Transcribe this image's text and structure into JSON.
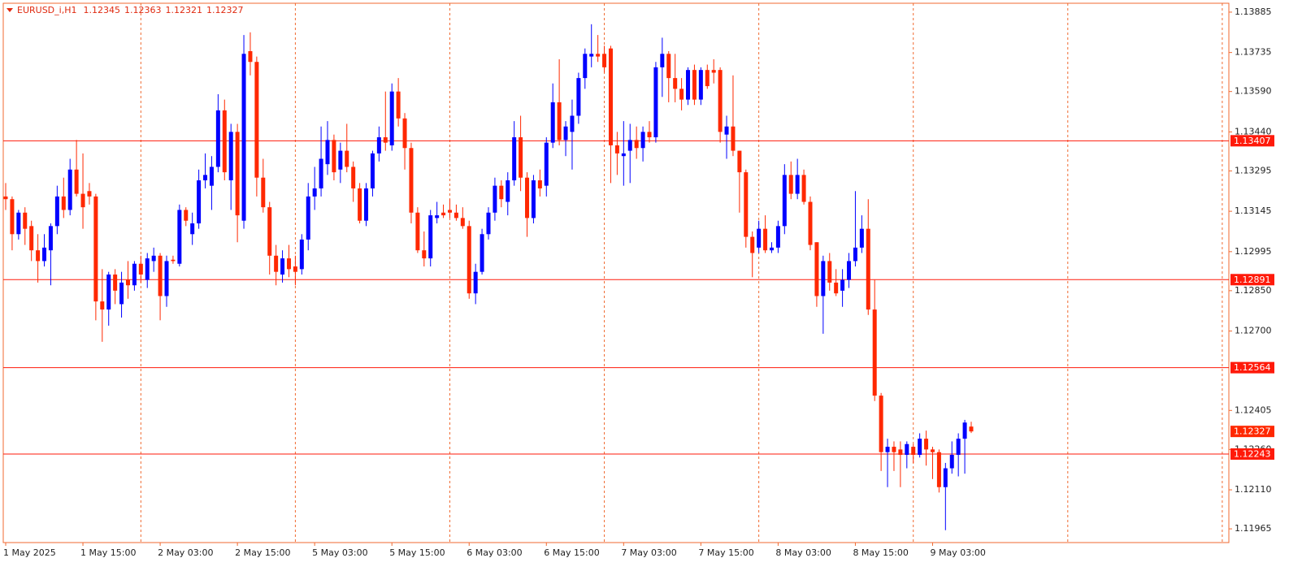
{
  "chart_data": {
    "type": "candlestick",
    "title": "EURUSD_i,H1",
    "categories": [
      "1 May 2025",
      null,
      null,
      null,
      null,
      null,
      null,
      null,
      null,
      null,
      null,
      null,
      "1 May 15:00",
      null,
      null,
      null,
      null,
      null,
      null,
      null,
      null,
      null,
      null,
      null,
      "2 May 03:00",
      null,
      null,
      null,
      null,
      null,
      null,
      null,
      null,
      null,
      null,
      null,
      "2 May 15:00",
      null,
      null,
      null,
      null,
      null,
      null,
      null,
      null,
      null,
      null,
      null,
      "5 May 03:00",
      null,
      null,
      null,
      null,
      null,
      null,
      null,
      null,
      null,
      null,
      null,
      "5 May 15:00",
      null,
      null,
      null,
      null,
      null,
      null,
      null,
      null,
      null,
      null,
      null,
      "6 May 03:00",
      null,
      null,
      null,
      null,
      null,
      null,
      null,
      null,
      null,
      null,
      null,
      "6 May 15:00",
      null,
      null,
      null,
      null,
      null,
      null,
      null,
      null,
      null,
      null,
      null,
      "7 May 03:00",
      null,
      null,
      null,
      null,
      null,
      null,
      null,
      null,
      null,
      null,
      null,
      "7 May 15:00",
      null,
      null,
      null,
      null,
      null,
      null,
      null,
      null,
      null,
      null,
      null,
      "8 May 03:00",
      null,
      null,
      null,
      null,
      null,
      null,
      null,
      null,
      null,
      null,
      null,
      "8 May 15:00",
      null,
      null,
      null,
      null,
      null,
      null,
      null,
      null,
      null,
      null,
      null,
      "9 May 03:00",
      null,
      null,
      null,
      null,
      null,
      null
    ],
    "open": [
      1.132,
      1.1319,
      1.1306,
      1.1314,
      1.1309,
      1.13,
      1.1296,
      1.13,
      1.1309,
      1.132,
      1.1315,
      1.133,
      1.1321,
      1.1322,
      1.132,
      1.1281,
      1.1278,
      1.1291,
      1.128,
      1.1289,
      1.1287,
      1.1295,
      1.1289,
      1.1296,
      1.1298,
      1.1283,
      1.12965,
      1.1295,
      1.1315,
      1.1306,
      1.131,
      1.1326,
      1.1324,
      1.1331,
      1.1352,
      1.1326,
      1.1344,
      1.1311,
      1.1374,
      1.137,
      1.1327,
      1.1316,
      1.1298,
      1.1291,
      1.1297,
      1.1294,
      1.1293,
      1.1304,
      1.132,
      1.1323,
      1.1332,
      1.1341,
      1.133,
      1.1337,
      1.1331,
      1.1323,
      1.1311,
      1.1323,
      1.1336,
      1.1342,
      1.1339,
      1.1359,
      1.1349,
      1.1338,
      1.1314,
      1.13,
      1.1297,
      1.1312,
      1.1314,
      1.1315,
      1.1314,
      1.1312,
      1.1309,
      1.1284,
      1.1292,
      1.1306,
      1.1314,
      1.1324,
      1.1318,
      1.1326,
      1.1342,
      1.1327,
      1.1312,
      1.1326,
      1.1324,
      1.134,
      1.1355,
      1.1341,
      1.1344,
      1.135,
      1.1364,
      1.1372,
      1.1373,
      1.1373,
      1.1375,
      1.1339,
      1.1335,
      1.1337,
      1.1341,
      1.1338,
      1.1344,
      1.1342,
      1.1368,
      1.1373,
      1.1364,
      1.136,
      1.1356,
      1.1367,
      1.1356,
      1.1367,
      1.1367,
      1.1367,
      1.1343,
      1.1346,
      1.1337,
      1.1329,
      1.1305,
      1.1301,
      1.1308,
      1.13,
      1.1301,
      1.1309,
      1.1328,
      1.1321,
      1.1328,
      1.1318,
      1.1303,
      1.1283,
      1.1296,
      1.1288,
      1.1285,
      1.1289,
      1.1296,
      1.1301,
      1.1308,
      1.1278,
      1.1246,
      1.1225,
      1.1227,
      1.1226,
      1.1224,
      1.1227,
      1.1224,
      1.123,
      1.1226,
      1.1225,
      1.1212,
      1.1219,
      1.1224,
      1.123,
      1.12345
    ],
    "high": [
      1.1325,
      1.132,
      1.1315,
      1.1316,
      1.1311,
      1.1306,
      1.1306,
      1.131,
      1.1324,
      1.1327,
      1.1334,
      1.1341,
      1.1336,
      1.1325,
      1.1321,
      1.1293,
      1.1292,
      1.1293,
      1.1292,
      1.1296,
      1.1296,
      1.1298,
      1.1299,
      1.1301,
      1.1299,
      1.1298,
      1.1298,
      1.1317,
      1.1316,
      1.1314,
      1.133,
      1.1336,
      1.1335,
      1.1358,
      1.1356,
      1.1347,
      1.1347,
      1.138,
      1.1381,
      1.1372,
      1.1334,
      1.1318,
      1.1302,
      1.13,
      1.1302,
      1.1298,
      1.1306,
      1.1325,
      1.1331,
      1.1346,
      1.1348,
      1.1343,
      1.134,
      1.1347,
      1.1333,
      1.1325,
      1.1325,
      1.1337,
      1.1346,
      1.1359,
      1.1362,
      1.1364,
      1.1351,
      1.134,
      1.1316,
      1.1307,
      1.1315,
      1.1318,
      1.1317,
      1.1319,
      1.1317,
      1.1316,
      1.1311,
      1.1295,
      1.1308,
      1.1316,
      1.1327,
      1.1326,
      1.1329,
      1.1348,
      1.135,
      1.1329,
      1.1328,
      1.133,
      1.1342,
      1.1362,
      1.1371,
      1.1348,
      1.1356,
      1.1366,
      1.1375,
      1.1384,
      1.138,
      1.1376,
      1.1376,
      1.1344,
      1.1348,
      1.1347,
      1.1346,
      1.1346,
      1.1348,
      1.137,
      1.1379,
      1.1374,
      1.1373,
      1.1364,
      1.1368,
      1.1369,
      1.1368,
      1.1369,
      1.1371,
      1.1368,
      1.135,
      1.1365,
      1.1337,
      1.133,
      1.1307,
      1.1311,
      1.1313,
      1.1303,
      1.1311,
      1.1332,
      1.1333,
      1.1334,
      1.133,
      1.132,
      1.1303,
      1.1298,
      1.1299,
      1.1293,
      1.1293,
      1.1299,
      1.1322,
      1.1313,
      1.1319,
      1.1289,
      1.1247,
      1.123,
      1.1229,
      1.1229,
      1.1229,
      1.1228,
      1.1232,
      1.1233,
      1.1227,
      1.1226,
      1.1221,
      1.1229,
      1.1232,
      1.1237,
      1.12363
    ],
    "low": [
      1.1315,
      1.13,
      1.1304,
      1.1302,
      1.1296,
      1.1288,
      1.1294,
      1.1287,
      1.1306,
      1.1312,
      1.1313,
      1.132,
      1.1308,
      1.1317,
      1.1274,
      1.1266,
      1.1272,
      1.128,
      1.1275,
      1.1282,
      1.1285,
      1.1288,
      1.1286,
      1.1292,
      1.1274,
      1.1279,
      1.1295,
      1.1294,
      1.1309,
      1.1302,
      1.1308,
      1.1323,
      1.1315,
      1.1329,
      1.1326,
      1.1315,
      1.1303,
      1.1308,
      1.1365,
      1.132,
      1.1314,
      1.1291,
      1.1287,
      1.1288,
      1.129,
      1.1287,
      1.1291,
      1.13,
      1.1315,
      1.132,
      1.1328,
      1.1326,
      1.1325,
      1.1329,
      1.1318,
      1.131,
      1.1309,
      1.132,
      1.1333,
      1.1337,
      1.1337,
      1.1346,
      1.133,
      1.131,
      1.1299,
      1.1294,
      1.1294,
      1.131,
      1.1312,
      1.1312,
      1.1311,
      1.1308,
      1.1282,
      1.128,
      1.1291,
      1.1304,
      1.1311,
      1.1316,
      1.1313,
      1.1324,
      1.1322,
      1.1305,
      1.131,
      1.132,
      1.132,
      1.1338,
      1.1339,
      1.1335,
      1.133,
      1.1347,
      1.136,
      1.1368,
      1.137,
      1.1366,
      1.1325,
      1.1328,
      1.1324,
      1.1325,
      1.1334,
      1.1333,
      1.134,
      1.134,
      1.1357,
      1.1355,
      1.1355,
      1.1352,
      1.1354,
      1.1354,
      1.1354,
      1.136,
      1.1362,
      1.134,
      1.1334,
      1.1335,
      1.1314,
      1.1301,
      1.129,
      1.1299,
      1.1299,
      1.1299,
      1.1299,
      1.1306,
      1.1319,
      1.1319,
      1.1317,
      1.13,
      1.1279,
      1.1269,
      1.1285,
      1.1283,
      1.1279,
      1.1286,
      1.1294,
      1.1299,
      1.1276,
      1.1244,
      1.1218,
      1.1212,
      1.1218,
      1.1212,
      1.1219,
      1.1221,
      1.1223,
      1.122,
      1.1215,
      1.121,
      1.1196,
      1.1217,
      1.1216,
      1.1217,
      1.12321
    ],
    "close": [
      1.1319,
      1.1306,
      1.1314,
      1.1308,
      1.13,
      1.1296,
      1.1301,
      1.1309,
      1.132,
      1.1315,
      1.133,
      1.1321,
      1.1316,
      1.132,
      1.1281,
      1.1278,
      1.1291,
      1.1285,
      1.1288,
      1.1287,
      1.1295,
      1.1291,
      1.1297,
      1.1298,
      1.1283,
      1.1296,
      1.1296,
      1.1315,
      1.1311,
      1.131,
      1.1326,
      1.1328,
      1.1331,
      1.1352,
      1.1329,
      1.1344,
      1.1313,
      1.1373,
      1.137,
      1.1327,
      1.1316,
      1.1298,
      1.1292,
      1.1297,
      1.1293,
      1.1292,
      1.1304,
      1.132,
      1.1323,
      1.1334,
      1.1341,
      1.1329,
      1.1337,
      1.1331,
      1.1323,
      1.1311,
      1.1323,
      1.1336,
      1.1342,
      1.134,
      1.1359,
      1.1349,
      1.1338,
      1.1314,
      1.13,
      1.1297,
      1.1313,
      1.1313,
      1.1313,
      1.1314,
      1.1312,
      1.1309,
      1.1284,
      1.1292,
      1.1306,
      1.1314,
      1.1324,
      1.1319,
      1.1326,
      1.1342,
      1.1327,
      1.1312,
      1.1326,
      1.1323,
      1.134,
      1.1355,
      1.1341,
      1.1346,
      1.135,
      1.1364,
      1.1373,
      1.1373,
      1.1372,
      1.1368,
      1.1339,
      1.1336,
      1.1336,
      1.1341,
      1.1338,
      1.1344,
      1.1342,
      1.1368,
      1.1373,
      1.1364,
      1.136,
      1.1356,
      1.1367,
      1.1356,
      1.1367,
      1.1361,
      1.1366,
      1.1344,
      1.1346,
      1.1337,
      1.1329,
      1.1305,
      1.1299,
      1.1308,
      1.13,
      1.1301,
      1.1309,
      1.1328,
      1.1321,
      1.1328,
      1.1318,
      1.1302,
      1.1283,
      1.1296,
      1.1288,
      1.1284,
      1.1289,
      1.1296,
      1.1301,
      1.1308,
      1.1278,
      1.1246,
      1.1225,
      1.1227,
      1.1225,
      1.1224,
      1.1228,
      1.1224,
      1.123,
      1.1226,
      1.1225,
      1.1212,
      1.1219,
      1.1224,
      1.123,
      1.1236,
      1.12327
    ],
    "up_color": "#0000ff",
    "down_color": "#ff2800",
    "levels": [
      1.13407,
      1.12891,
      1.12564,
      1.12243
    ],
    "level_color": "#ff1a0a",
    "ylim": [
      1.11914,
      1.13918
    ],
    "yticks": [
      1.13885,
      1.13735,
      {
        "value": 1.1359,
        "label": "1.13590"
      },
      {
        "value": 1.1344,
        "label": "1.13440"
      },
      1.13295,
      1.13145,
      1.12995,
      {
        "value": 1.1285,
        "label": "1.12850"
      },
      {
        "value": 1.127,
        "label": "1.12700"
      },
      1.12405,
      {
        "value": 1.1226,
        "label": "1.12260"
      },
      {
        "value": 1.1211,
        "label": "1.12110"
      },
      1.11965
    ],
    "grid": false
  }
}
